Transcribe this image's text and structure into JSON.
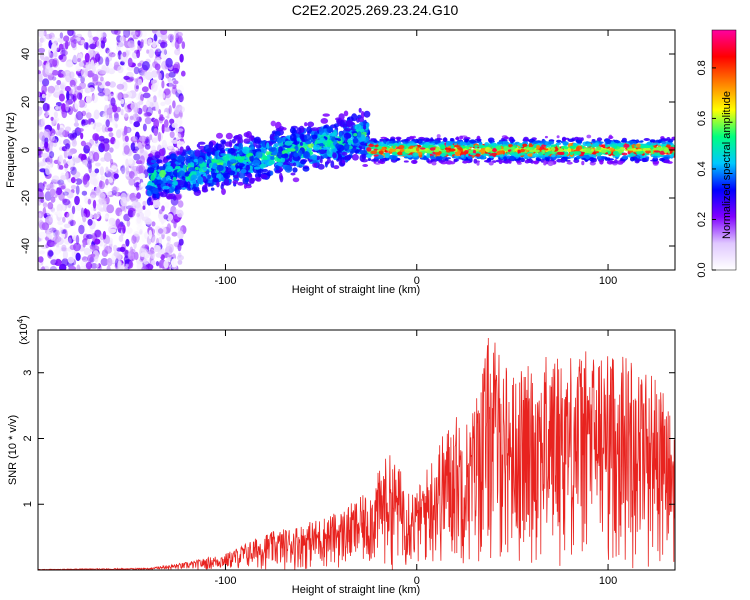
{
  "page": {
    "title": "C2E2.2025.269.23.24.G10"
  },
  "chart_data": [
    {
      "type": "heatmap",
      "xlabel": "Height of straight line (km)",
      "ylabel": "Frequency (Hz)",
      "xlim": [
        -198,
        135
      ],
      "ylim": [
        -50,
        50
      ],
      "xticks": [
        -100,
        0,
        100
      ],
      "yticks": [
        -40,
        -20,
        0,
        20,
        40
      ],
      "xtick_labels": [
        "-100",
        "0",
        "100"
      ],
      "ytick_labels": [
        "-40",
        "-20",
        "0",
        "20",
        "40"
      ],
      "colorbar": {
        "label": "Normalized spectral amplitude",
        "range": [
          0,
          0.95
        ],
        "ticks": [
          0,
          0.2,
          0.4,
          0.6,
          0.8
        ],
        "tick_labels": [
          "0.0",
          "0.2",
          "0.4",
          "0.6",
          "0.8"
        ],
        "colormap": [
          "#ffffff",
          "#e0c8ff",
          "#8000ff",
          "#0000ff",
          "#00c8ff",
          "#00ff80",
          "#ffff00",
          "#ff8000",
          "#ff0000",
          "#ff00a0"
        ]
      },
      "regions": [
        {
          "name": "noise",
          "x_range": [
            -198,
            -122
          ],
          "freq_range": [
            -50,
            50
          ],
          "amplitude": 0.12
        },
        {
          "name": "rising-band",
          "x_range": [
            -140,
            -25
          ],
          "freq_center_start": -12,
          "freq_center_end": 6,
          "width": 14,
          "amplitude": 0.35
        },
        {
          "name": "stable-band",
          "x_range": [
            -25,
            135
          ],
          "freq_center": 0,
          "width": 6,
          "amplitude": 0.85
        }
      ]
    },
    {
      "type": "line",
      "xlabel": "Height of straight line (km)",
      "ylabel": "SNR (10 * v/v)",
      "y_multiplier_label": "(x10",
      "y_multiplier_exp": "4",
      "y_multiplier_close": ")",
      "xlim": [
        -198,
        135
      ],
      "ylim": [
        0,
        3.65
      ],
      "xticks": [
        -100,
        0,
        100
      ],
      "yticks": [
        1,
        2,
        3
      ],
      "xtick_labels": [
        "-100",
        "0",
        "100"
      ],
      "ytick_labels": [
        "1",
        "2",
        "3"
      ],
      "series": [
        {
          "color": "#e8231f",
          "envelope": [
            [
              -198,
              0.01
            ],
            [
              -140,
              0.03
            ],
            [
              -120,
              0.12
            ],
            [
              -100,
              0.25
            ],
            [
              -80,
              0.55
            ],
            [
              -60,
              0.7
            ],
            [
              -40,
              0.9
            ],
            [
              -25,
              1.2
            ],
            [
              -15,
              1.8
            ],
            [
              -10,
              1.6
            ],
            [
              0,
              1.2
            ],
            [
              10,
              1.9
            ],
            [
              20,
              2.4
            ],
            [
              28,
              2.3
            ],
            [
              38,
              3.65
            ],
            [
              50,
              3.0
            ],
            [
              70,
              3.3
            ],
            [
              90,
              3.35
            ],
            [
              110,
              3.3
            ],
            [
              125,
              3.0
            ],
            [
              135,
              2.2
            ]
          ]
        }
      ]
    }
  ]
}
